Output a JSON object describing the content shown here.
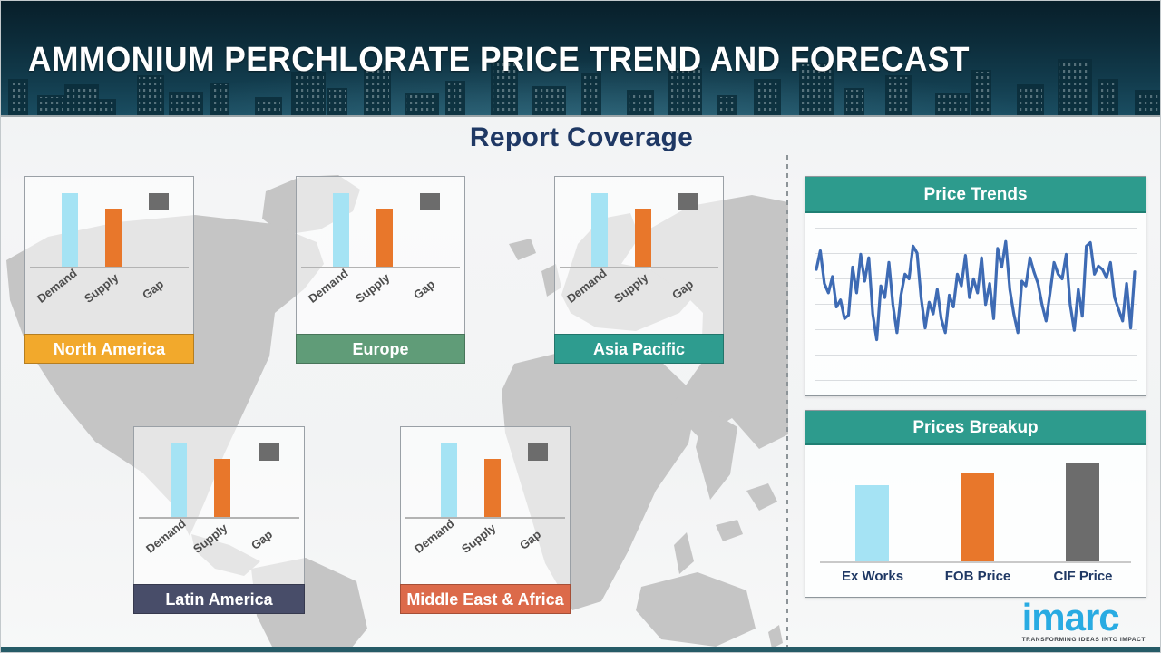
{
  "header": {
    "title": "AMMONIUM PERCHLORATE PRICE TREND AND FORECAST"
  },
  "section": {
    "title": "Report Coverage"
  },
  "region_axis_labels": [
    "Demand",
    "Supply",
    "Gap"
  ],
  "bar_colors": {
    "demand": "#A5E3F4",
    "supply": "#E8772B",
    "gap": "#6C6C6C"
  },
  "regions": [
    {
      "name": "North America",
      "label_color": "#F2A92C",
      "demand": 75,
      "supply": 60
    },
    {
      "name": "Europe",
      "label_color": "#609C78",
      "demand": 75,
      "supply": 60
    },
    {
      "name": "Asia Pacific",
      "label_color": "#2E9C8F",
      "demand": 75,
      "supply": 60
    },
    {
      "name": "Latin America",
      "label_color": "#484D69",
      "demand": 75,
      "supply": 60
    },
    {
      "name": "Middle East & Africa",
      "label_color": "#DC6A4A",
      "demand": 75,
      "supply": 60
    }
  ],
  "price_trends": {
    "title": "Price Trends",
    "line_color": "#3E6BB4"
  },
  "prices_breakup": {
    "title": "Prices Breakup",
    "items": [
      {
        "label": "Ex Works",
        "value": 55,
        "color": "#A5E3F4"
      },
      {
        "label": "FOB Price",
        "value": 64,
        "color": "#E8772B"
      },
      {
        "label": "CIF Price",
        "value": 71,
        "color": "#6C6C6C"
      }
    ]
  },
  "logo": {
    "text": "imarc",
    "tagline": "TRANSFORMING IDEAS INTO IMPACT",
    "color": "#29ABE2"
  },
  "chart_data": [
    {
      "type": "line",
      "title": "Price Trends",
      "xlabel": "time (unlabeled)",
      "ylabel": "price (unlabeled)",
      "ylim": [
        0,
        100
      ],
      "grid": true,
      "legend": false,
      "line_color": "#3E6BB4",
      "values": [
        72,
        88,
        60,
        52,
        66,
        40,
        46,
        30,
        33,
        74,
        52,
        85,
        62,
        82,
        34,
        12,
        58,
        48,
        78,
        42,
        18,
        50,
        68,
        64,
        92,
        86,
        48,
        22,
        44,
        34,
        55,
        30,
        18,
        50,
        40,
        68,
        58,
        84,
        48,
        64,
        52,
        82,
        42,
        60,
        30,
        90,
        74,
        96,
        55,
        34,
        18,
        62,
        58,
        82,
        70,
        60,
        42,
        28,
        52,
        78,
        68,
        64,
        85,
        42,
        20,
        55,
        32,
        92,
        95,
        68,
        75,
        72,
        65,
        78,
        48,
        38,
        28,
        60,
        22,
        70
      ]
    },
    {
      "type": "bar",
      "title": "Prices Breakup",
      "categories": [
        "Ex Works",
        "FOB Price",
        "CIF Price"
      ],
      "values": [
        55,
        64,
        71
      ],
      "colors": [
        "#A5E3F4",
        "#E8772B",
        "#6C6C6C"
      ],
      "ylim": [
        0,
        100
      ],
      "grid": false
    },
    {
      "type": "bar",
      "title": "Regional Demand / Supply / Gap (repeated for North America, Europe, Asia Pacific, Latin America, Middle East & Africa)",
      "categories": [
        "Demand",
        "Supply",
        "Gap"
      ],
      "values": [
        75,
        60,
        null
      ],
      "note": "Gap is depicted as a small gray square marker, not a bar",
      "colors": [
        "#A5E3F4",
        "#E8772B",
        "#6C6C6C"
      ]
    }
  ]
}
